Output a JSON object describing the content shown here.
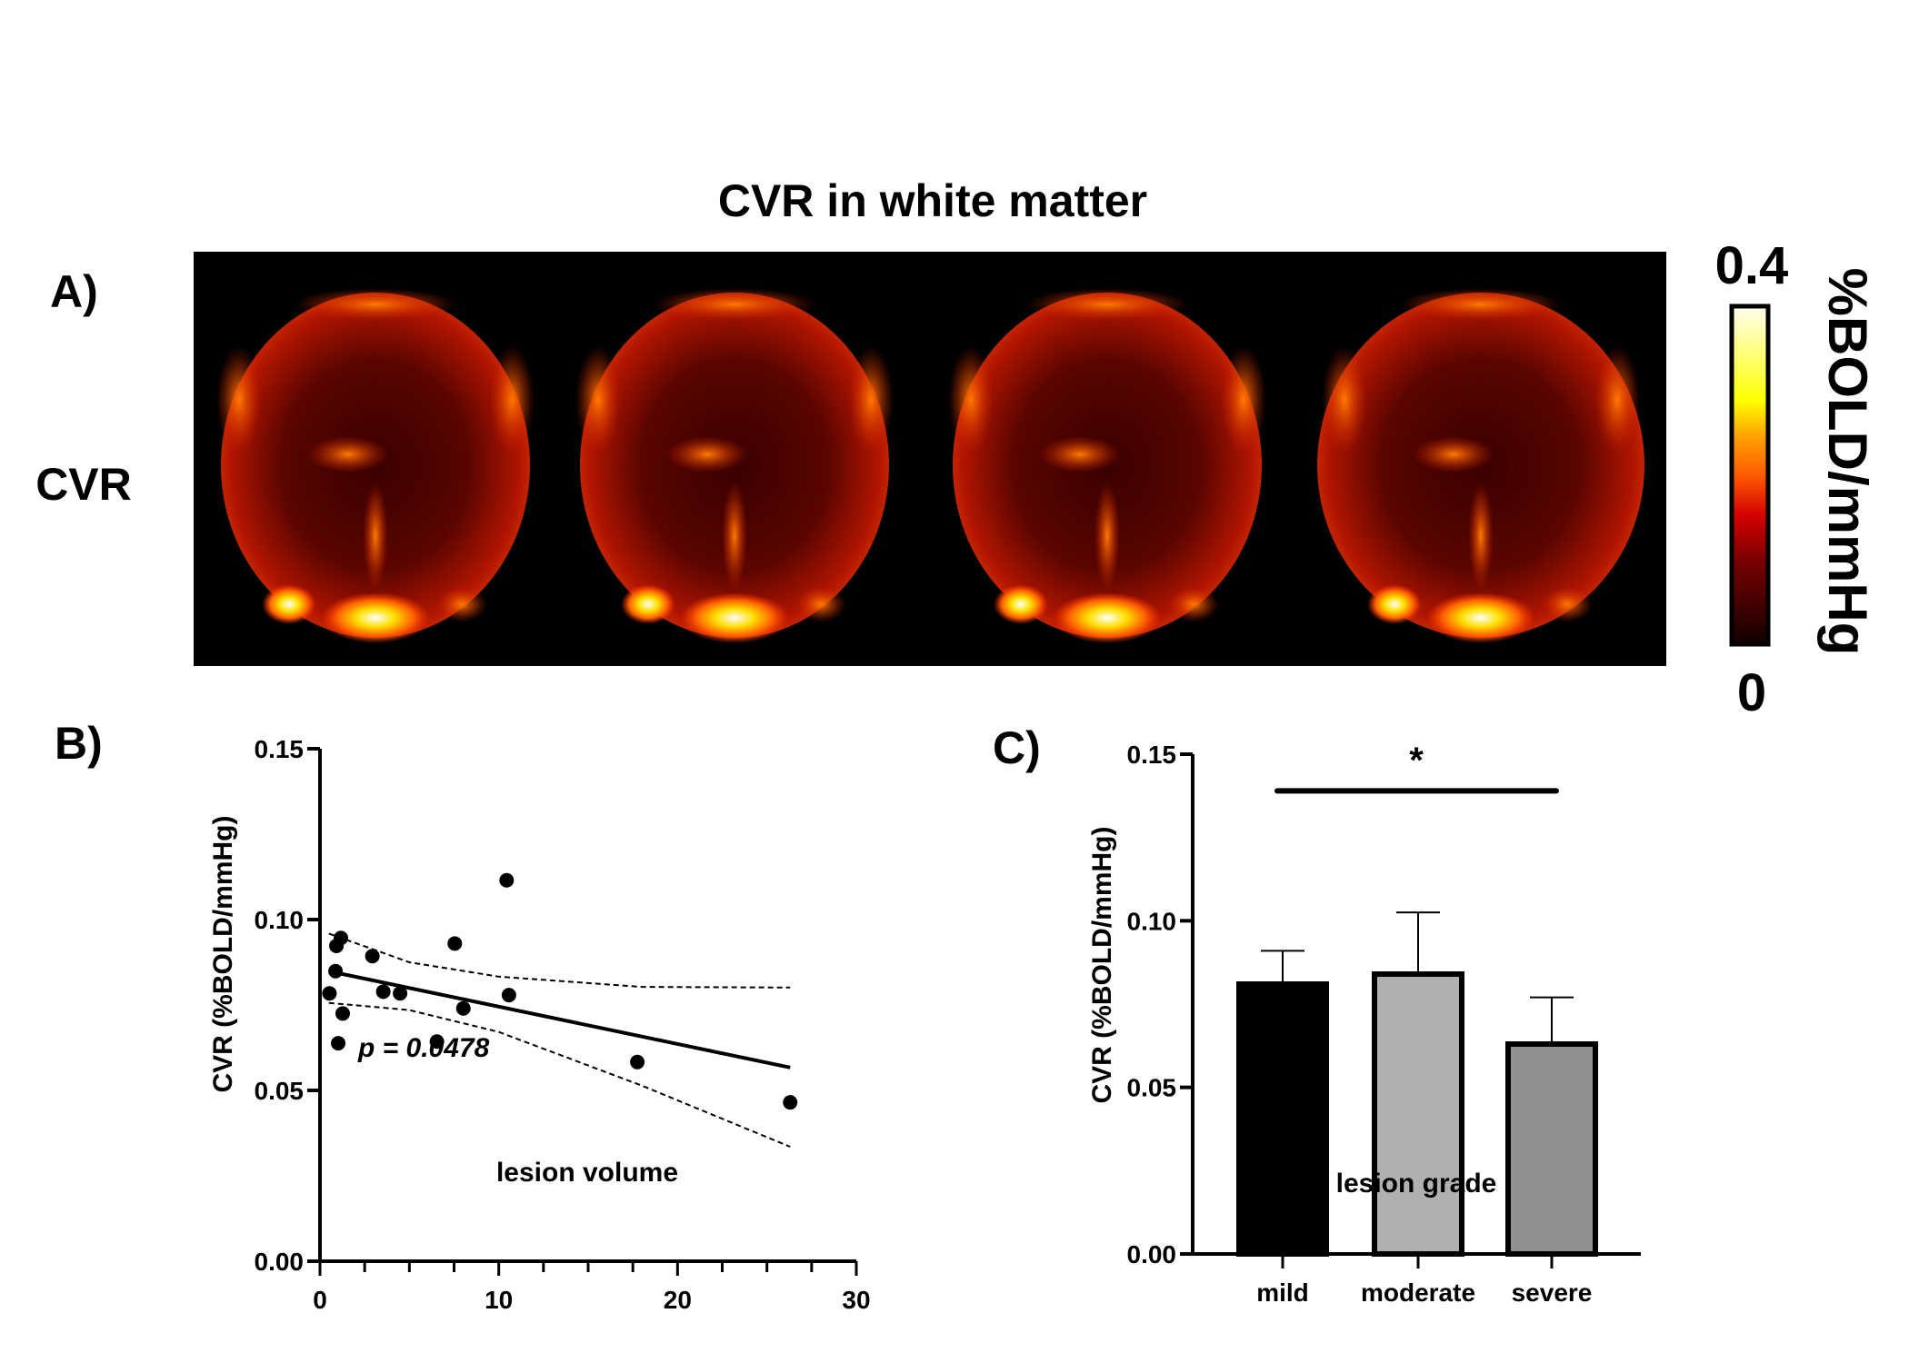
{
  "title": "CVR in white matter",
  "panel_a": {
    "label": "A)",
    "row_label": "CVR",
    "colorbar": {
      "max_label": "0.4",
      "min_label": "0",
      "unit_label": "%BOLD/mmHg",
      "colors": [
        "#000000",
        "#7a0000",
        "#d40000",
        "#ff5a00",
        "#ffa500",
        "#ffff00",
        "#fffde8"
      ]
    },
    "slice_count": 4
  },
  "chart_data": [
    {
      "type": "scatter",
      "panel_label": "B)",
      "xlabel": "lesion volume",
      "ylabel": "CVR (%BOLD/mmHg)",
      "xlim": [
        0,
        30
      ],
      "ylim": [
        0,
        0.15
      ],
      "xticks": [
        "0",
        "10",
        "20",
        "30"
      ],
      "yticks": [
        "0.00",
        "0.05",
        "0.10",
        "0.15"
      ],
      "annotation": "p = 0.0478",
      "points": [
        [
          0.53,
          0.0784
        ],
        [
          0.87,
          0.0849
        ],
        [
          0.92,
          0.0923
        ],
        [
          1.17,
          0.0946
        ],
        [
          1.27,
          0.0725
        ],
        [
          1.02,
          0.0638
        ],
        [
          2.93,
          0.0893
        ],
        [
          3.54,
          0.0789
        ],
        [
          4.48,
          0.0784
        ],
        [
          6.54,
          0.0643
        ],
        [
          7.54,
          0.093
        ],
        [
          8.02,
          0.074
        ],
        [
          10.44,
          0.1115
        ],
        [
          10.57,
          0.0779
        ],
        [
          17.75,
          0.0583
        ],
        [
          26.3,
          0.0465
        ]
      ],
      "regression": [
        [
          0.5,
          0.0849
        ],
        [
          26.3,
          0.0567
        ]
      ],
      "ci_upper": [
        [
          0.5,
          0.0959
        ],
        [
          5,
          0.0875
        ],
        [
          10,
          0.0833
        ],
        [
          18,
          0.0803
        ],
        [
          26.3,
          0.0801
        ]
      ],
      "ci_lower": [
        [
          0.5,
          0.0756
        ],
        [
          5,
          0.0735
        ],
        [
          10,
          0.0671
        ],
        [
          18,
          0.0514
        ],
        [
          26.3,
          0.0335
        ]
      ]
    },
    {
      "type": "bar",
      "panel_label": "C)",
      "xlabel": "lesion grade",
      "ylabel": "CVR (%BOLD/mmHg)",
      "ylim": [
        0,
        0.15
      ],
      "yticks": [
        "0.00",
        "0.05",
        "0.10",
        "0.15"
      ],
      "categories": [
        "mild",
        "moderate",
        "severe"
      ],
      "values": [
        0.081,
        0.084,
        0.063
      ],
      "error_upper": [
        0.091,
        0.1025,
        0.077
      ],
      "colors": [
        "#000000",
        "#b0b0b0",
        "#909090"
      ],
      "significance": {
        "from": "mild",
        "to": "severe",
        "label": "*",
        "level": 0.139
      }
    }
  ]
}
